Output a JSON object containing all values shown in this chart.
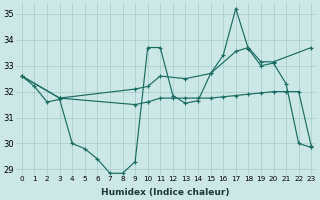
{
  "xlabel": "Humidex (Indice chaleur)",
  "bg_color": "#cce8e6",
  "grid_color": "#aacfcd",
  "line_color": "#1a6b62",
  "xlim": [
    -0.5,
    23.3
  ],
  "ylim": [
    28.8,
    35.4
  ],
  "xticks": [
    0,
    1,
    2,
    3,
    4,
    5,
    6,
    7,
    8,
    9,
    10,
    11,
    12,
    13,
    14,
    15,
    16,
    17,
    18,
    19,
    20,
    21,
    22,
    23
  ],
  "yticks": [
    29,
    30,
    31,
    32,
    33,
    34,
    35
  ],
  "series": [
    {
      "x": [
        0,
        1,
        2,
        3,
        4,
        5,
        6,
        7,
        8,
        9,
        10,
        11,
        12,
        13,
        14,
        15,
        16,
        17,
        18,
        19,
        20,
        21,
        22,
        23
      ],
      "y": [
        32.6,
        32.2,
        31.6,
        31.7,
        30.0,
        29.8,
        29.4,
        28.85,
        28.85,
        29.3,
        33.7,
        33.7,
        31.85,
        31.55,
        31.65,
        32.7,
        33.4,
        35.2,
        33.65,
        33.0,
        33.1,
        32.3,
        30.0,
        29.85
      ]
    },
    {
      "x": [
        0,
        3,
        9,
        10,
        11,
        13,
        15,
        17,
        18,
        19,
        20,
        23
      ],
      "y": [
        32.6,
        31.75,
        32.1,
        32.2,
        32.6,
        32.5,
        32.7,
        33.55,
        33.7,
        33.15,
        33.15,
        33.7
      ]
    },
    {
      "x": [
        0,
        3,
        9,
        10,
        11,
        12,
        13,
        14,
        15,
        16,
        17,
        18,
        19,
        20,
        21,
        22,
        23
      ],
      "y": [
        32.6,
        31.75,
        31.5,
        31.6,
        31.75,
        31.75,
        31.75,
        31.75,
        31.75,
        31.8,
        31.85,
        31.9,
        31.95,
        32.0,
        32.0,
        32.0,
        29.9
      ]
    }
  ]
}
